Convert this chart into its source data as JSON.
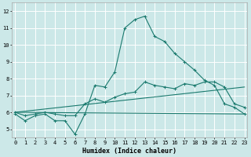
{
  "xlabel": "Humidex (Indice chaleur)",
  "bg_color": "#cce8e8",
  "grid_color": "#ffffff",
  "line_color": "#1a7a6e",
  "series": [
    {
      "x": [
        0,
        1,
        2,
        3,
        4,
        5,
        6,
        7,
        8,
        9,
        10,
        11,
        12,
        13,
        14,
        15,
        16,
        17,
        18,
        19,
        20,
        21,
        22,
        23
      ],
      "y": [
        5.9,
        5.5,
        5.8,
        5.9,
        5.5,
        5.5,
        4.7,
        5.9,
        7.6,
        7.5,
        8.4,
        11.0,
        11.5,
        11.7,
        10.5,
        10.2,
        9.5,
        9.0,
        8.5,
        7.9,
        7.6,
        6.5,
        6.3,
        5.9
      ],
      "marker": true
    },
    {
      "x": [
        0,
        1,
        2,
        3,
        4,
        5,
        6,
        7,
        8,
        9,
        10,
        11,
        12,
        13,
        14,
        15,
        16,
        17,
        18,
        19,
        20,
        21,
        22,
        23
      ],
      "y": [
        6.0,
        5.8,
        5.9,
        6.0,
        5.9,
        5.8,
        5.8,
        6.5,
        6.8,
        6.6,
        6.9,
        7.1,
        7.2,
        7.8,
        7.6,
        7.5,
        7.4,
        7.7,
        7.6,
        7.8,
        7.8,
        7.5,
        6.5,
        6.3
      ],
      "marker": true
    },
    {
      "x": [
        0,
        23
      ],
      "y": [
        6.0,
        7.5
      ],
      "marker": false
    },
    {
      "x": [
        0,
        23
      ],
      "y": [
        6.0,
        5.9
      ],
      "marker": false
    }
  ],
  "ylim": [
    4.5,
    12.5
  ],
  "xlim": [
    -0.3,
    23.3
  ],
  "yticks": [
    5,
    6,
    7,
    8,
    9,
    10,
    11,
    12
  ],
  "xticks": [
    0,
    1,
    2,
    3,
    4,
    5,
    6,
    7,
    8,
    9,
    10,
    11,
    12,
    13,
    14,
    15,
    16,
    17,
    18,
    19,
    20,
    21,
    22,
    23
  ],
  "xlabel_fontsize": 6,
  "tick_fontsize": 5
}
